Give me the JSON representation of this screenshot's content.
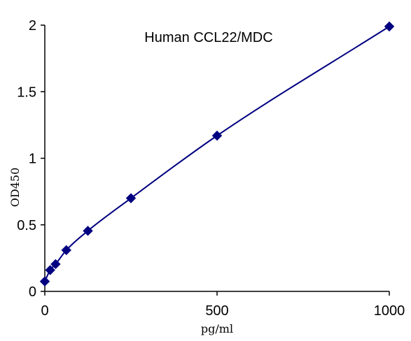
{
  "chart_data": {
    "type": "scatter",
    "title": "Human  CCL22/MDC",
    "xlabel": "pg/ml",
    "ylabel": "OD450",
    "xlim": [
      0,
      1000
    ],
    "ylim": [
      0,
      2
    ],
    "xticks": [
      "0",
      "500",
      "1000"
    ],
    "yticks": [
      "0",
      "0.5",
      "1",
      "1.5",
      "2"
    ],
    "grid": false,
    "legend": "none",
    "series": [
      {
        "x": [
          0,
          15.6,
          31.25,
          62.5,
          125,
          250,
          500,
          1000
        ],
        "y": [
          0.075,
          0.16,
          0.205,
          0.31,
          0.455,
          0.7,
          1.17,
          1.99
        ],
        "marker": "diamond",
        "line": "smooth",
        "color": "#000080"
      }
    ]
  }
}
